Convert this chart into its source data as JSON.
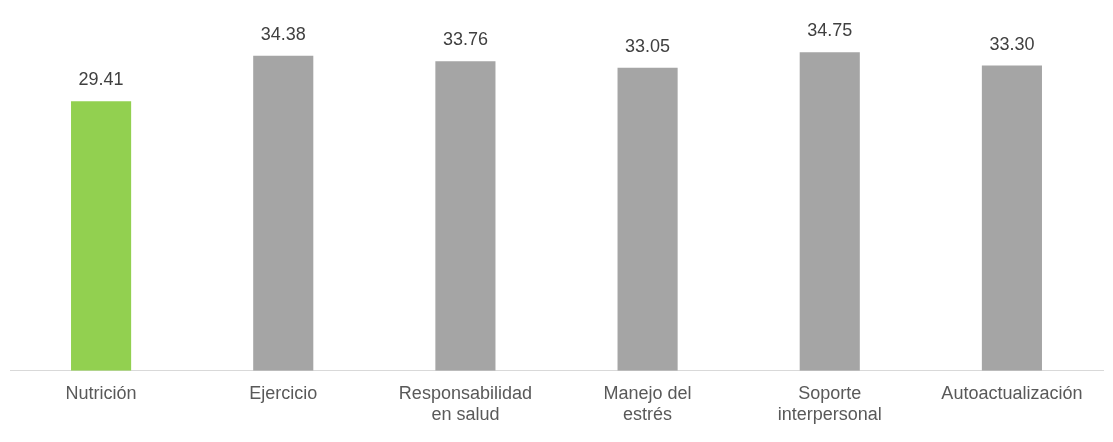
{
  "chart_data": {
    "type": "bar",
    "categories": [
      "Nutrición",
      "Ejercicio",
      "Responsabilidad en salud",
      "Manejo del estrés",
      "Soporte interpersonal",
      "Autoactualización"
    ],
    "values": [
      29.41,
      34.38,
      33.76,
      33.05,
      34.75,
      33.3
    ],
    "colors": [
      "#92d050",
      "#a5a5a5",
      "#a5a5a5",
      "#a5a5a5",
      "#a5a5a5",
      "#a5a5a5"
    ],
    "value_labels": [
      "29.41",
      "34.38",
      "33.76",
      "33.05",
      "34.75",
      "33.30"
    ],
    "grid": false,
    "legend": false
  }
}
